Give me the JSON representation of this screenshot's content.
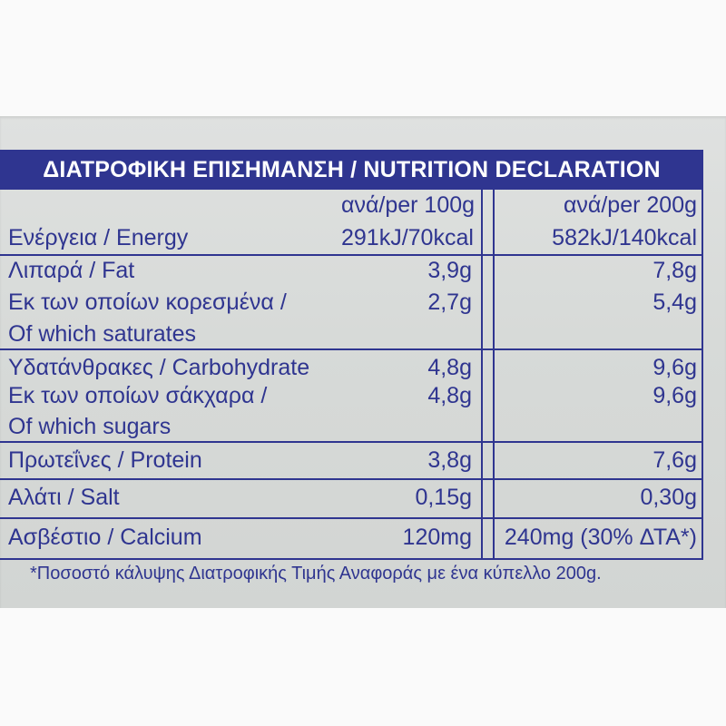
{
  "title": "ΔΙΑΤΡΟΦΙΚΗ ΕΠΙΣΗΜΑΝΣΗ / NUTRITION DECLARATION",
  "columns": {
    "per100": "ανά/per 100g",
    "per200": "ανά/per 200g"
  },
  "rows": [
    {
      "label": "Ενέργεια / Energy",
      "value100": "291kJ/70kcal",
      "value200": "582kJ/140kcal"
    },
    {
      "label": "Λιπαρά / Fat",
      "value100": "3,9g",
      "value200": "7,8g"
    },
    {
      "label_line1": "Εκ των οποίων κορεσμένα /",
      "label_line2": "Of which saturates",
      "value100": "2,7g",
      "value200": "5,4g"
    },
    {
      "label": "Υδατάνθρακες / Carbohydrate",
      "value100": "4,8g",
      "value200": "9,6g"
    },
    {
      "label_line1": "Εκ των οποίων σάκχαρα /",
      "label_line2": "Of which sugars",
      "value100": "4,8g",
      "value200": "9,6g"
    },
    {
      "label": "Πρωτεΐνες / Protein",
      "value100": "3,8g",
      "value200": "7,6g"
    },
    {
      "label": "Αλάτι / Salt",
      "value100": "0,15g",
      "value200": "0,30g"
    },
    {
      "label": "Ασβέστιο / Calcium",
      "value100": "120mg",
      "value200": "240mg (30% ΔΤΑ*)"
    }
  ],
  "footnote": "*Ποσοστό κάλυψης Διατροφικής Τιμής Αναφοράς με ένα κύπελλο 200g.",
  "colors": {
    "ink": "#2f3590",
    "paper": "#d7dad8"
  }
}
